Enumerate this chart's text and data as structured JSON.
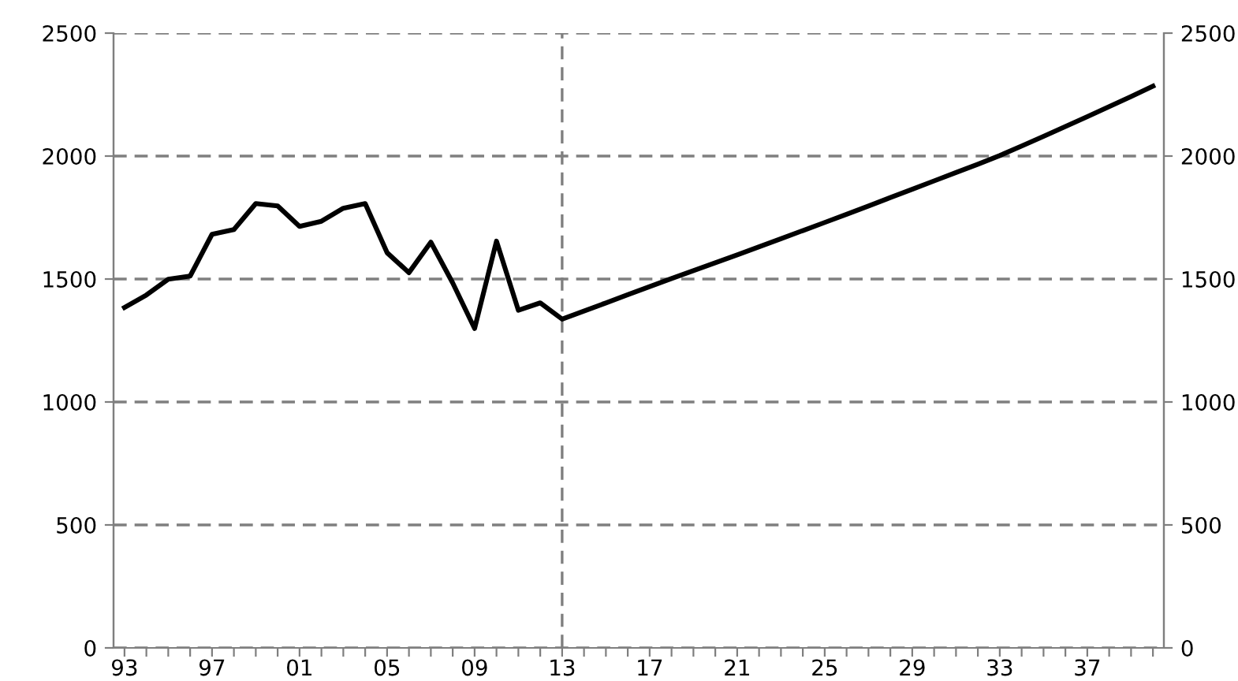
{
  "chart_data": {
    "type": "line",
    "categories": [
      "93",
      null,
      null,
      null,
      "97",
      null,
      null,
      null,
      "01",
      null,
      null,
      null,
      "05",
      null,
      null,
      null,
      "09",
      null,
      null,
      null,
      "13",
      null,
      null,
      null,
      "17",
      null,
      null,
      null,
      "21",
      null,
      null,
      null,
      "25",
      null,
      null,
      null,
      "29",
      null,
      null,
      null,
      "33",
      null,
      null,
      null,
      "37",
      null,
      null,
      null
    ],
    "series": [
      {
        "color": "#000000",
        "values": [
          1384,
          1435,
          1499,
          1512,
          1682,
          1701,
          1807,
          1797,
          1714,
          1735,
          1788,
          1807,
          1607,
          1526,
          1650,
          1484,
          1299,
          1654,
          1373,
          1403,
          1337,
          1370,
          1403,
          1436,
          1469,
          1502,
          1534,
          1566,
          1598,
          1631,
          1664,
          1697,
          1730,
          1763,
          1797,
          1831,
          1865,
          1899,
          1933,
          1967,
          2002,
          2041,
          2080,
          2120,
          2160,
          2201,
          2242,
          2284
        ]
      }
    ],
    "ylim": [
      0,
      2500
    ],
    "yticks": [
      0,
      500,
      1000,
      1500,
      2000,
      2500
    ],
    "y2lim": [
      0,
      2500
    ],
    "y2ticks": [
      0,
      500,
      1000,
      1500,
      2000,
      2500
    ],
    "ref_lines": [
      {
        "axis": "x",
        "value": "13",
        "color": "#7f7f7f",
        "line_style": "dashed"
      }
    ],
    "grid": "y",
    "legend": false,
    "marker": "none",
    "line_style": "solid"
  }
}
